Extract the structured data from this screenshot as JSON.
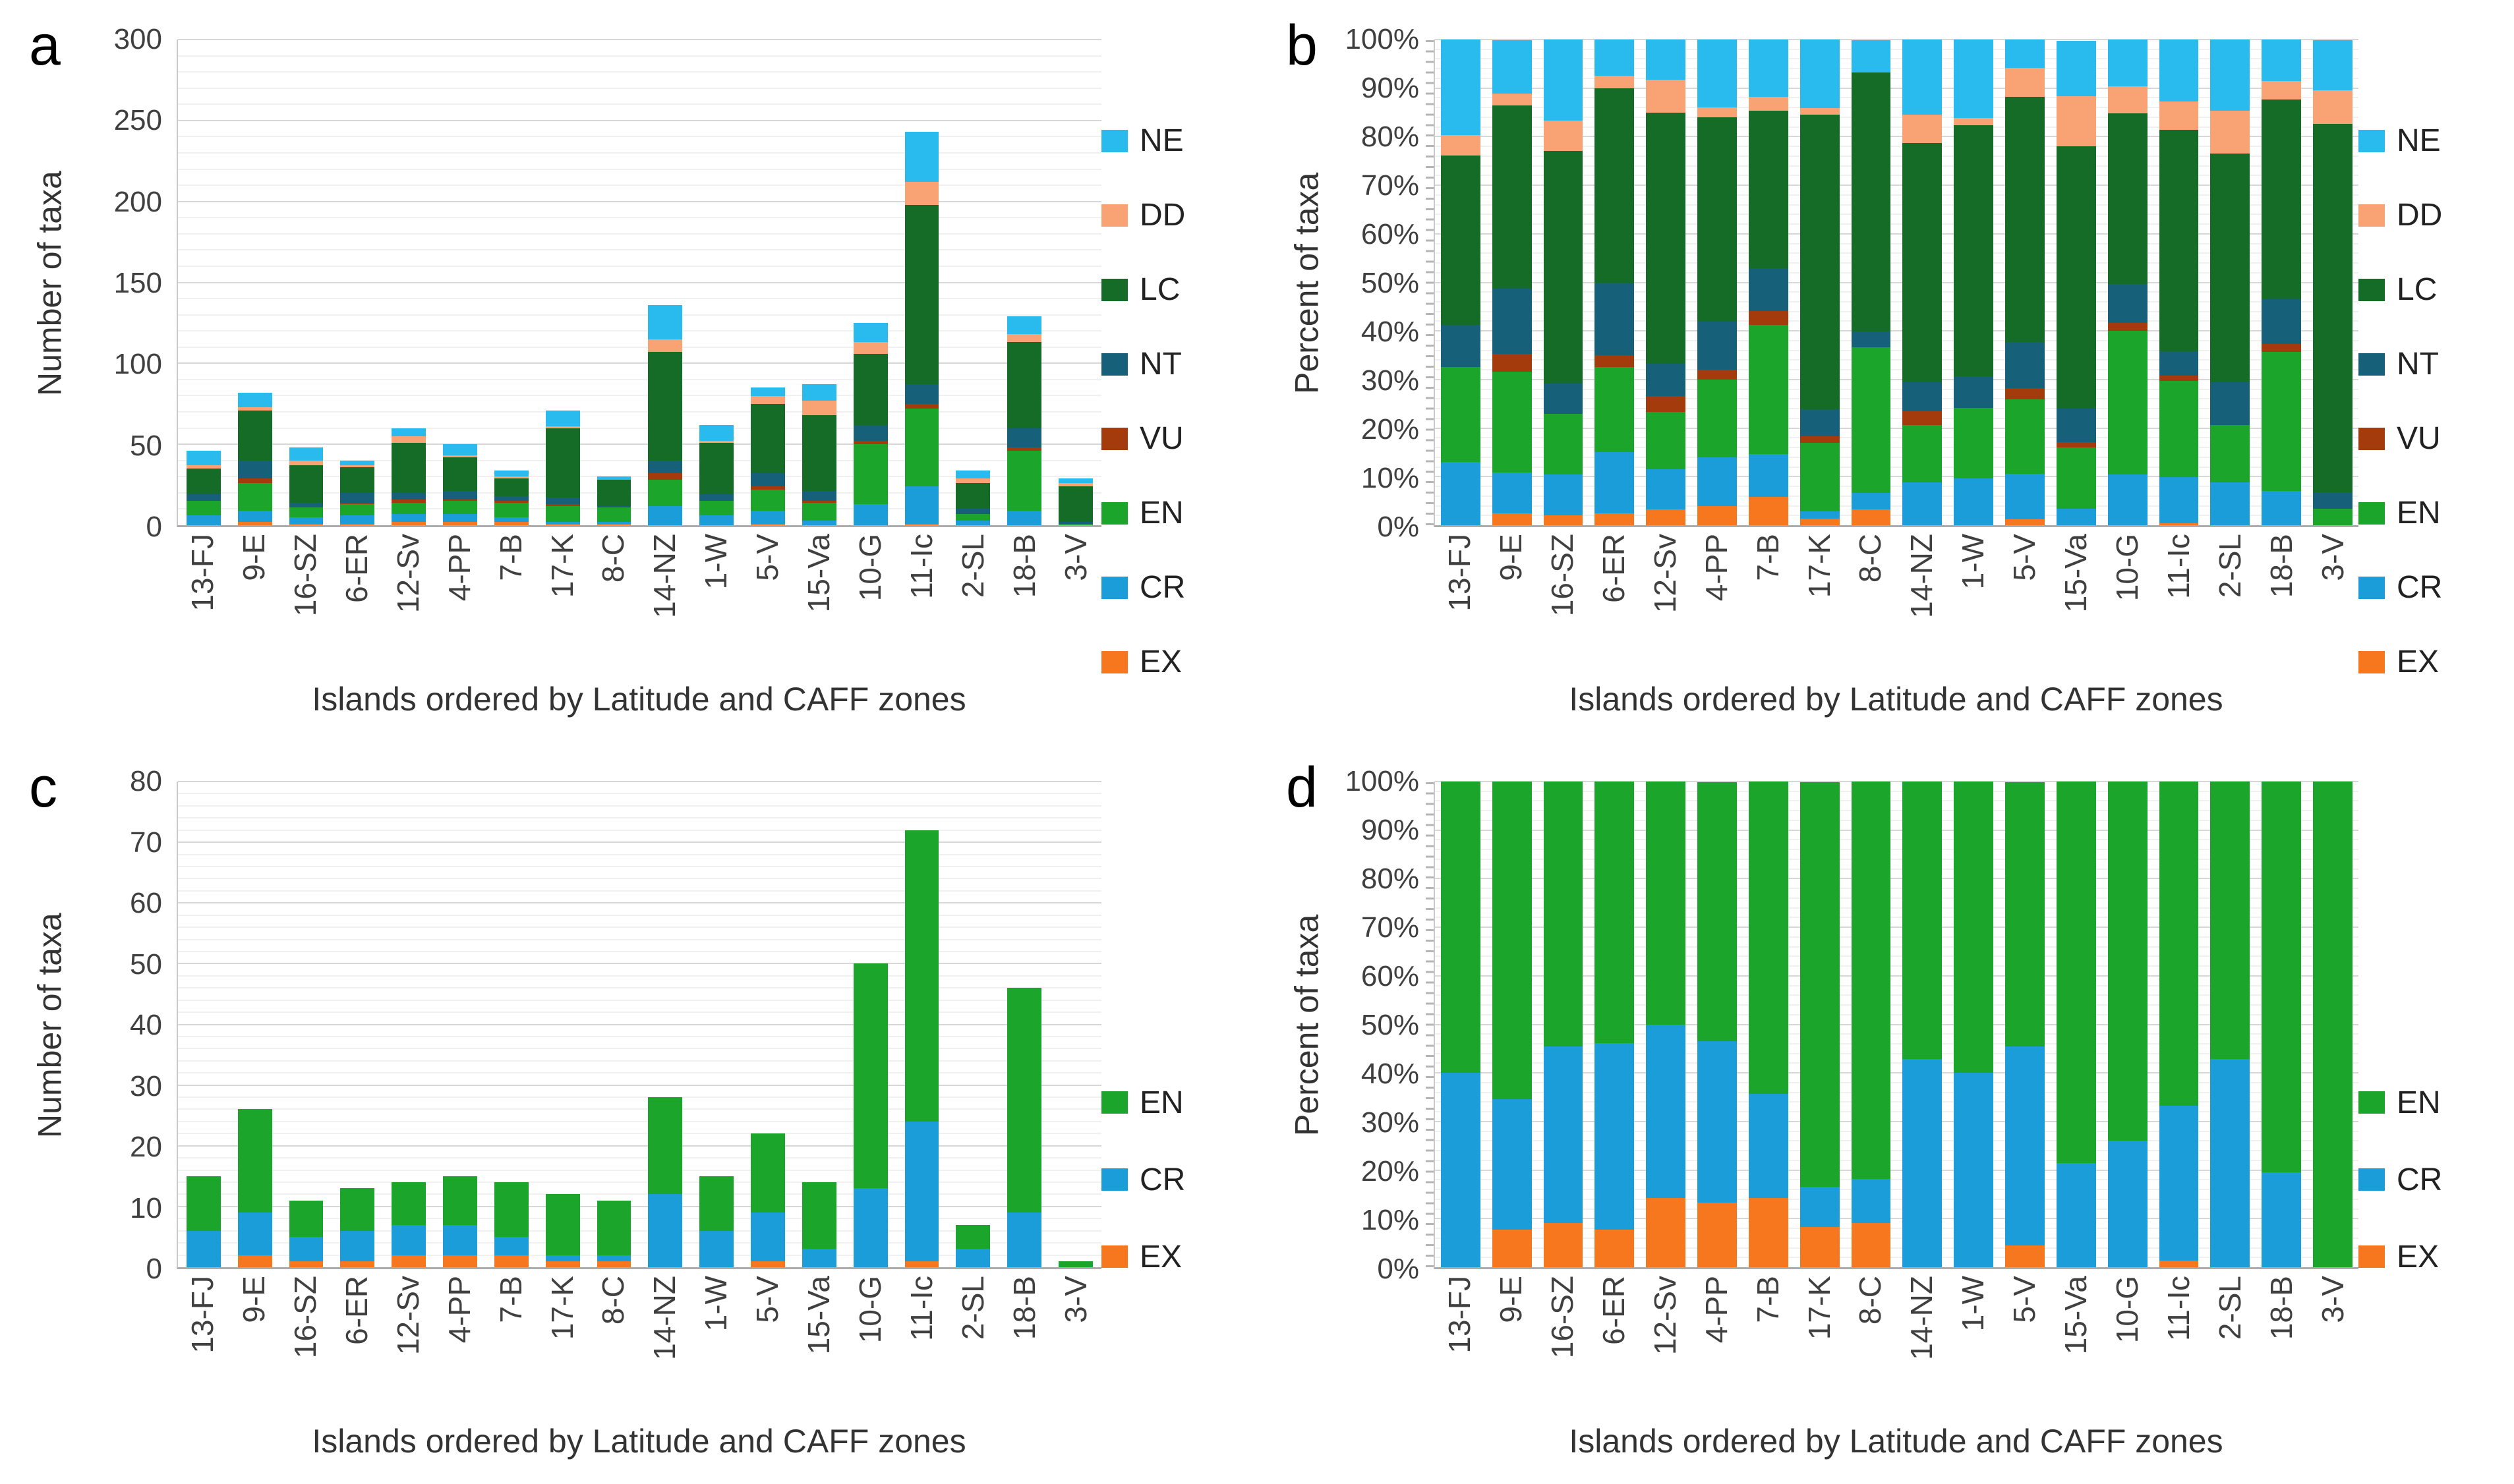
{
  "figure": {
    "x_axis_title": "Islands ordered by Latitude and CAFF zones",
    "colors": {
      "NE": "#29BBEE",
      "DD": "#F9A273",
      "LC": "#156C26",
      "NT": "#16607A",
      "VU": "#A33B0C",
      "EN": "#1CA52B",
      "CR": "#1B9DD9",
      "EX": "#F6771D"
    }
  },
  "chart_data": [
    {
      "panel_letter": "a",
      "type": "bar",
      "stacked": true,
      "ylabel": "Number of taxa",
      "xlabel": "Islands ordered by Latitude and CAFF zones",
      "ylim": [
        0,
        300
      ],
      "ytick_step": 50,
      "minor_grid_step": 10,
      "y_tick_labels": [
        "0",
        "50",
        "100",
        "150",
        "200",
        "250",
        "300"
      ],
      "grid": true,
      "legend_position": "right",
      "legend_order": [
        "NE",
        "DD",
        "LC",
        "NT",
        "VU",
        "EN",
        "CR",
        "EX"
      ],
      "categories": [
        "13-FJ",
        "9-E",
        "16-SZ",
        "6-ER",
        "12-Sv",
        "4-PP",
        "7-B",
        "17-K",
        "8-C",
        "14-NZ",
        "1-W",
        "5-V",
        "15-Va",
        "10-G",
        "11-Ic",
        "2-SL",
        "18-B",
        "3-V"
      ],
      "series": [
        {
          "name": "EX",
          "values": [
            0,
            2,
            1,
            1,
            2,
            2,
            2,
            1,
            1,
            0,
            0,
            1,
            0,
            0,
            1,
            0,
            0,
            0
          ]
        },
        {
          "name": "CR",
          "values": [
            6,
            7,
            4,
            5,
            5,
            5,
            3,
            1,
            1,
            12,
            6,
            8,
            3,
            13,
            23,
            3,
            9,
            0
          ]
        },
        {
          "name": "EN",
          "values": [
            9,
            17,
            6,
            7,
            7,
            8,
            9,
            10,
            9,
            16,
            9,
            13,
            11,
            37,
            48,
            4,
            37,
            1
          ]
        },
        {
          "name": "VU",
          "values": [
            0,
            3,
            0,
            1,
            2,
            1,
            1,
            1,
            0,
            4,
            0,
            2,
            1,
            2,
            3,
            0,
            2,
            0
          ]
        },
        {
          "name": "NT",
          "values": [
            4,
            11,
            3,
            6,
            4,
            5,
            3,
            4,
            1,
            8,
            4,
            8,
            6,
            10,
            12,
            3,
            12,
            1
          ]
        },
        {
          "name": "LC",
          "values": [
            16,
            31,
            23,
            16,
            31,
            21,
            11,
            43,
            16,
            67,
            32,
            43,
            47,
            44,
            111,
            16,
            53,
            22
          ]
        },
        {
          "name": "DD",
          "values": [
            2,
            2,
            3,
            1,
            4,
            1,
            1,
            1,
            0,
            8,
            1,
            5,
            9,
            7,
            14,
            3,
            5,
            2
          ]
        },
        {
          "name": "NE",
          "values": [
            9,
            9,
            8,
            3,
            5,
            7,
            4,
            10,
            2,
            21,
            10,
            5,
            10,
            12,
            31,
            5,
            11,
            3
          ]
        }
      ]
    },
    {
      "panel_letter": "b",
      "type": "bar",
      "stacked": true,
      "normalized_percent": true,
      "ylabel": "Percent of taxa",
      "xlabel": "Islands ordered by Latitude and CAFF zones",
      "ylim": [
        0,
        100
      ],
      "ytick_step": 10,
      "minor_grid_step": 2,
      "y_tick_labels": [
        "0%",
        "10%",
        "20%",
        "30%",
        "40%",
        "50%",
        "60%",
        "70%",
        "80%",
        "90%",
        "100%"
      ],
      "grid": true,
      "legend_position": "right",
      "legend_order": [
        "NE",
        "DD",
        "LC",
        "NT",
        "VU",
        "EN",
        "CR",
        "EX"
      ],
      "categories": [
        "13-FJ",
        "9-E",
        "16-SZ",
        "6-ER",
        "12-Sv",
        "4-PP",
        "7-B",
        "17-K",
        "8-C",
        "14-NZ",
        "1-W",
        "5-V",
        "15-Va",
        "10-G",
        "11-Ic",
        "2-SL",
        "18-B",
        "3-V"
      ],
      "series": [
        {
          "name": "EX",
          "values": [
            0,
            2.4,
            2.1,
            2.5,
            3.3,
            4,
            5.9,
            1.4,
            3.3,
            0,
            0,
            1.2,
            0,
            0,
            0.4,
            0,
            0,
            0
          ]
        },
        {
          "name": "CR",
          "values": [
            13,
            8.5,
            8.3,
            12.5,
            8.3,
            10,
            8.8,
            1.4,
            3.3,
            8.8,
            9.7,
            9.4,
            3.4,
            10.4,
            9.5,
            8.8,
            7,
            0
          ]
        },
        {
          "name": "EN",
          "values": [
            19.6,
            20.7,
            12.5,
            17.5,
            11.7,
            16,
            26.5,
            14.1,
            30,
            11.8,
            14.5,
            15.3,
            12.6,
            29.6,
            19.8,
            11.8,
            28.7,
            3.4
          ]
        },
        {
          "name": "VU",
          "values": [
            0,
            3.7,
            0,
            2.5,
            3.3,
            2,
            2.9,
            1.4,
            0,
            2.9,
            0,
            2.4,
            1.1,
            1.6,
            1.2,
            0,
            1.6,
            0
          ]
        },
        {
          "name": "NT",
          "values": [
            8.7,
            13.4,
            6.3,
            15,
            6.7,
            10,
            8.8,
            5.6,
            3.3,
            5.9,
            6.5,
            9.4,
            6.9,
            8,
            4.9,
            8.8,
            9.3,
            3.4
          ]
        },
        {
          "name": "LC",
          "values": [
            34.8,
            37.8,
            47.9,
            40,
            51.7,
            42,
            32.4,
            60.6,
            53.3,
            49.3,
            51.6,
            50.6,
            54,
            35.2,
            45.7,
            47.1,
            41.1,
            75.9
          ]
        },
        {
          "name": "DD",
          "values": [
            4.3,
            2.4,
            6.3,
            2.5,
            6.7,
            2,
            2.9,
            1.4,
            0,
            5.9,
            1.6,
            5.9,
            10.3,
            5.6,
            5.8,
            8.8,
            3.9,
            6.9
          ]
        },
        {
          "name": "NE",
          "values": [
            19.6,
            11,
            16.7,
            7.5,
            8.3,
            14,
            11.8,
            14.1,
            6.7,
            15.4,
            16.1,
            5.9,
            11.5,
            9.6,
            12.8,
            14.7,
            8.5,
            10.3
          ]
        }
      ]
    },
    {
      "panel_letter": "c",
      "type": "bar",
      "stacked": true,
      "ylabel": "Number of taxa",
      "xlabel": "Islands ordered by Latitude and CAFF zones",
      "ylim": [
        0,
        80
      ],
      "ytick_step": 10,
      "minor_grid_step": 2,
      "y_tick_labels": [
        "0",
        "10",
        "20",
        "30",
        "40",
        "50",
        "60",
        "70",
        "80"
      ],
      "grid": true,
      "legend_position": "right",
      "legend_order": [
        "EN",
        "CR",
        "EX"
      ],
      "categories": [
        "13-FJ",
        "9-E",
        "16-SZ",
        "6-ER",
        "12-Sv",
        "4-PP",
        "7-B",
        "17-K",
        "8-C",
        "14-NZ",
        "1-W",
        "5-V",
        "15-Va",
        "10-G",
        "11-Ic",
        "2-SL",
        "18-B",
        "3-V"
      ],
      "series": [
        {
          "name": "EX",
          "values": [
            0,
            2,
            1,
            1,
            2,
            2,
            2,
            1,
            1,
            0,
            0,
            1,
            0,
            0,
            1,
            0,
            0,
            0
          ]
        },
        {
          "name": "CR",
          "values": [
            6,
            7,
            4,
            5,
            5,
            5,
            3,
            1,
            1,
            12,
            6,
            8,
            3,
            13,
            23,
            3,
            9,
            0
          ]
        },
        {
          "name": "EN",
          "values": [
            9,
            17,
            6,
            7,
            7,
            8,
            9,
            10,
            9,
            16,
            9,
            13,
            11,
            37,
            48,
            4,
            37,
            1
          ]
        }
      ]
    },
    {
      "panel_letter": "d",
      "type": "bar",
      "stacked": true,
      "normalized_percent": true,
      "ylabel": "Percent of taxa",
      "xlabel": "Islands ordered by Latitude and CAFF zones",
      "ylim": [
        0,
        100
      ],
      "ytick_step": 10,
      "minor_grid_step": 2,
      "y_tick_labels": [
        "0%",
        "10%",
        "20%",
        "30%",
        "40%",
        "50%",
        "60%",
        "70%",
        "80%",
        "90%",
        "100%"
      ],
      "grid": true,
      "legend_position": "right",
      "legend_order": [
        "EN",
        "CR",
        "EX"
      ],
      "categories": [
        "13-FJ",
        "9-E",
        "16-SZ",
        "6-ER",
        "12-Sv",
        "4-PP",
        "7-B",
        "17-K",
        "8-C",
        "14-NZ",
        "1-W",
        "5-V",
        "15-Va",
        "10-G",
        "11-Ic",
        "2-SL",
        "18-B",
        "3-V"
      ],
      "series": [
        {
          "name": "EX",
          "values": [
            0,
            7.7,
            9.1,
            7.7,
            14.3,
            13.3,
            14.3,
            8.3,
            9.1,
            0,
            0,
            4.5,
            0,
            0,
            1.4,
            0,
            0,
            0
          ]
        },
        {
          "name": "CR",
          "values": [
            40,
            26.9,
            36.4,
            38.5,
            35.7,
            33.3,
            21.4,
            8.3,
            9.1,
            42.9,
            40,
            40.9,
            21.4,
            26,
            31.9,
            42.9,
            19.6,
            0
          ]
        },
        {
          "name": "EN",
          "values": [
            60,
            65.4,
            54.5,
            53.8,
            50,
            53.3,
            64.3,
            83.3,
            81.8,
            57.1,
            60,
            54.5,
            78.6,
            74,
            66.7,
            57.1,
            80.4,
            100
          ]
        }
      ]
    }
  ]
}
